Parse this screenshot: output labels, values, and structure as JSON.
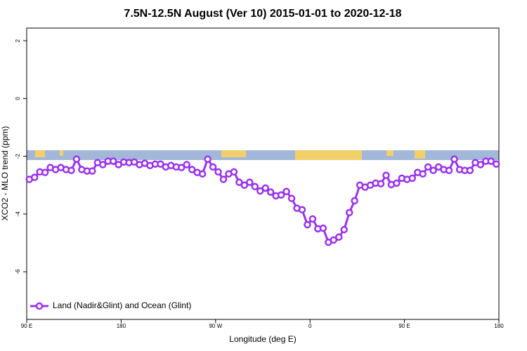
{
  "chart_data": {
    "type": "line",
    "title": "7.5N-12.5N August (Ver 10)   2015-01-01 to 2020-12-18",
    "x_label": "Longitude (deg E)",
    "y_label": "XCO2 - MLO trend (ppm)",
    "x": [
      92.5,
      97.5,
      102.5,
      107.5,
      112.5,
      117.5,
      122.5,
      127.5,
      132.5,
      137.5,
      142.5,
      147.5,
      152.5,
      157.5,
      162.5,
      167.5,
      172.5,
      177.5,
      182.5,
      187.5,
      192.5,
      197.5,
      202.5,
      207.5,
      212.5,
      217.5,
      222.5,
      227.5,
      232.5,
      237.5,
      242.5,
      247.5,
      252.5,
      257.5,
      262.5,
      267.5,
      272.5,
      277.5,
      282.5,
      287.5,
      292.5,
      297.5,
      302.5,
      307.5,
      312.5,
      317.5,
      322.5,
      327.5,
      332.5,
      337.5,
      342.5,
      347.5,
      352.5,
      357.5,
      362.5,
      367.5,
      372.5,
      377.5,
      382.5,
      387.5,
      392.5,
      397.5,
      402.5,
      407.5,
      412.5,
      417.5,
      422.5,
      427.5,
      432.5,
      437.5,
      442.5,
      447.5,
      452.5,
      457.5,
      462.5,
      467.5,
      472.5,
      477.5,
      482.5,
      487.5,
      492.5,
      497.5,
      502.5,
      507.5,
      512.5,
      517.5,
      522.5,
      527.5,
      532.5,
      537.5
    ],
    "series": [
      {
        "name": "Land (Nadir&Glint) and Ocean (Glint)",
        "color": "#9933ee",
        "values": [
          -2.8,
          -2.73,
          -2.54,
          -2.56,
          -2.39,
          -2.46,
          -2.39,
          -2.46,
          -2.49,
          -2.1,
          -2.46,
          -2.51,
          -2.51,
          -2.22,
          -2.29,
          -2.17,
          -2.17,
          -2.29,
          -2.2,
          -2.22,
          -2.2,
          -2.29,
          -2.24,
          -2.32,
          -2.27,
          -2.27,
          -2.37,
          -2.32,
          -2.37,
          -2.39,
          -2.29,
          -2.46,
          -2.56,
          -2.61,
          -2.1,
          -2.37,
          -2.54,
          -2.8,
          -2.61,
          -2.54,
          -2.9,
          -3.0,
          -2.9,
          -3.05,
          -3.2,
          -3.1,
          -3.24,
          -3.37,
          -3.34,
          -3.22,
          -3.46,
          -3.8,
          -3.85,
          -4.37,
          -4.17,
          -4.51,
          -4.49,
          -4.98,
          -4.9,
          -4.8,
          -4.54,
          -3.95,
          -3.54,
          -3.0,
          -3.07,
          -3.0,
          -2.93,
          -2.95,
          -2.66,
          -2.98,
          -2.93,
          -2.76,
          -2.8,
          -2.76,
          -2.56,
          -2.61,
          -2.37,
          -2.49,
          -2.37,
          -2.46,
          -2.49,
          -2.1,
          -2.46,
          -2.49,
          -2.49,
          -2.22,
          -2.29,
          -2.17,
          -2.17,
          -2.27
        ]
      }
    ],
    "xlim": [
      90,
      540
    ],
    "xticks": [
      {
        "value": 90,
        "label": "90 E"
      },
      {
        "value": 180,
        "label": "180"
      },
      {
        "value": 270,
        "label": "90 W"
      },
      {
        "value": 360,
        "label": "0"
      },
      {
        "value": 450,
        "label": "90 E"
      },
      {
        "value": 540,
        "label": "180"
      }
    ],
    "ylim": [
      -7.65,
      2.44
    ],
    "yticks": [
      2,
      0,
      -2,
      -4,
      -6
    ],
    "legend": "bottom-left"
  }
}
